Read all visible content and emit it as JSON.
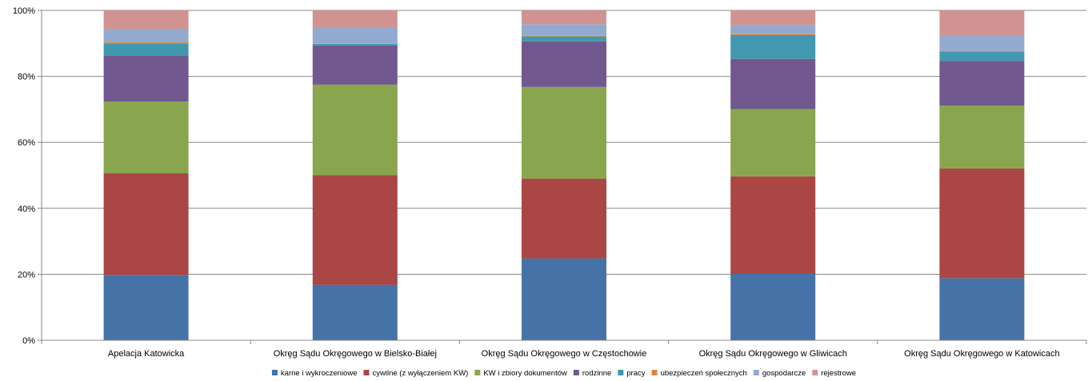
{
  "chart_data": {
    "type": "bar",
    "stacked": true,
    "normalized": true,
    "categories": [
      "Apelacja Katowicka",
      "Okręg Sądu Okręgowego w Bielsko-Białej",
      "Okręg Sądu Okręgowego w Częstochowie",
      "Okręg Sądu Okręgowego w Gliwicach",
      "Okręg Sądu Okręgowego w Katowicach"
    ],
    "series": [
      {
        "name": "karne i wykroczeniowe",
        "color": "#4572a7",
        "values": [
          19.8,
          16.8,
          24.8,
          20.1,
          18.8
        ]
      },
      {
        "name": "cywilne (z wyłączeniem KW)",
        "color": "#aa4643",
        "values": [
          30.8,
          33.2,
          24.2,
          29.6,
          33.3
        ]
      },
      {
        "name": "KW i zbiory dokumentów",
        "color": "#89a54e",
        "values": [
          21.8,
          27.5,
          27.8,
          20.4,
          19.0
        ]
      },
      {
        "name": "rodzinne",
        "color": "#71588f",
        "values": [
          13.9,
          11.9,
          13.8,
          15.2,
          13.6
        ]
      },
      {
        "name": "pracy",
        "color": "#4198af",
        "values": [
          3.7,
          0.5,
          1.5,
          7.2,
          2.8
        ]
      },
      {
        "name": "ubezpieczeń społecznych",
        "color": "#db843d",
        "values": [
          0.3,
          0.1,
          0.2,
          0.3,
          0.2
        ]
      },
      {
        "name": "gospodarcze",
        "color": "#93a9cf",
        "values": [
          4.0,
          4.8,
          3.5,
          2.8,
          4.8
        ]
      },
      {
        "name": "rejestrowe",
        "color": "#d19392",
        "values": [
          5.7,
          5.2,
          4.2,
          4.4,
          7.5
        ]
      }
    ],
    "y_ticks": [
      "0%",
      "20%",
      "40%",
      "60%",
      "80%",
      "100%"
    ],
    "ylim": [
      0,
      100
    ],
    "grid": true,
    "legend_position": "bottom"
  }
}
